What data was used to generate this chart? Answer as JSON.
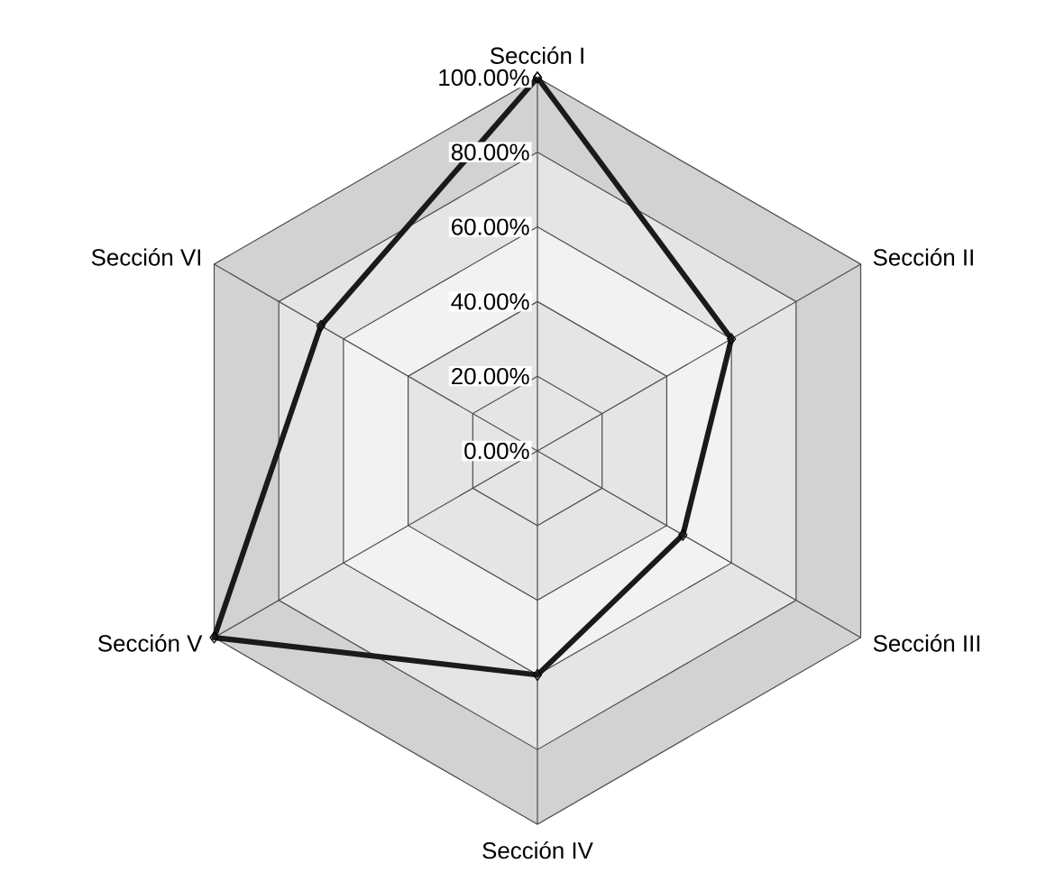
{
  "chart_data": {
    "type": "radar",
    "categories": [
      "Sección I",
      "Sección II",
      "Sección III",
      "Sección IV",
      "Sección V",
      "Sección VI"
    ],
    "series": [
      {
        "color": "#1a1a1a",
        "values": [
          100,
          60,
          45,
          60,
          100,
          67
        ]
      }
    ],
    "ylim": [
      0,
      100
    ],
    "yticks": [
      {
        "value": 0,
        "label": "0.00%"
      },
      {
        "value": 20,
        "label": "20.00%"
      },
      {
        "value": 40,
        "label": "40.00%"
      },
      {
        "value": 60,
        "label": "60.00%"
      },
      {
        "value": 80,
        "label": "80.00%"
      },
      {
        "value": 100,
        "label": "100.00%"
      }
    ],
    "grid": true,
    "marker": "diamond"
  }
}
